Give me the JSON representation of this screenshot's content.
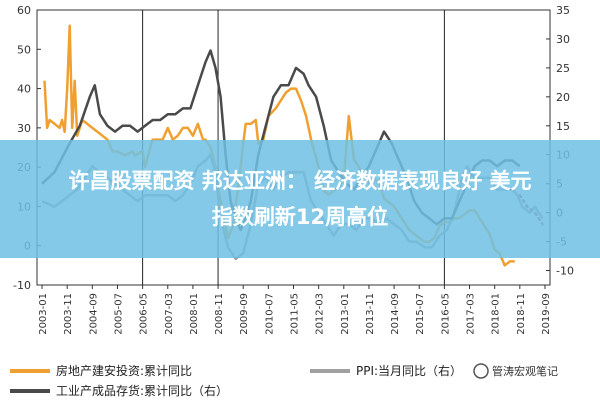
{
  "banner": {
    "line1": "许昌股票配资 邦达亚洲： 经济数据表现良好 美元",
    "line2": "指数刷新12周高位",
    "bg_color": "#6ec1e4"
  },
  "watermark": {
    "text": "管涛宏观笔记"
  },
  "chart_data": {
    "type": "line",
    "x_tick_labels": [
      "2003-01",
      "2003-11",
      "2004-09",
      "2005-07",
      "2006-05",
      "2007-03",
      "2008-01",
      "2008-11",
      "2009-09",
      "2010-07",
      "2011-05",
      "2012-03",
      "2013-01",
      "2013-11",
      "2014-09",
      "2015-07",
      "2016-05",
      "2017-03",
      "2018-01",
      "2018-11",
      "2019-09"
    ],
    "vertical_markers": [
      "2006-05",
      "2008-11",
      "2016-05"
    ],
    "y_left": {
      "ticks": [
        -10,
        0,
        10,
        20,
        30,
        40,
        50,
        60
      ],
      "range": [
        -10,
        60
      ]
    },
    "y_right": {
      "ticks": [
        -10,
        -5,
        0,
        5,
        10,
        15,
        20,
        25,
        30,
        35
      ],
      "range": [
        -12.5,
        35
      ]
    },
    "series": [
      {
        "name": "房地产建安投资:累计同比",
        "axis": "left",
        "color": "#f0a030",
        "points": [
          [
            "2003-02",
            42
          ],
          [
            "2003-03",
            30
          ],
          [
            "2003-04",
            32
          ],
          [
            "2003-06",
            31
          ],
          [
            "2003-08",
            30
          ],
          [
            "2003-09",
            32
          ],
          [
            "2003-10",
            29
          ],
          [
            "2003-11",
            40
          ],
          [
            "2003-12",
            56
          ],
          [
            "2004-01",
            30
          ],
          [
            "2004-02",
            42
          ],
          [
            "2004-03",
            28
          ],
          [
            "2004-05",
            32
          ],
          [
            "2004-07",
            31
          ],
          [
            "2004-09",
            30
          ],
          [
            "2004-11",
            29
          ],
          [
            "2005-01",
            28
          ],
          [
            "2005-03",
            27
          ],
          [
            "2005-05",
            24
          ],
          [
            "2005-07",
            24
          ],
          [
            "2005-10",
            23
          ],
          [
            "2006-01",
            24
          ],
          [
            "2006-02",
            23
          ],
          [
            "2006-05",
            24
          ],
          [
            "2006-06",
            20
          ],
          [
            "2006-08",
            25
          ],
          [
            "2006-09",
            27
          ],
          [
            "2006-11",
            27
          ],
          [
            "2007-01",
            27
          ],
          [
            "2007-03",
            30
          ],
          [
            "2007-05",
            27
          ],
          [
            "2007-07",
            28
          ],
          [
            "2007-09",
            30
          ],
          [
            "2007-11",
            30
          ],
          [
            "2008-01",
            28
          ],
          [
            "2008-03",
            31
          ],
          [
            "2008-05",
            27
          ],
          [
            "2008-06",
            27
          ],
          [
            "2008-08",
            25
          ],
          [
            "2008-10",
            20
          ],
          [
            "2008-11",
            15
          ],
          [
            "2009-01",
            8
          ],
          [
            "2009-03",
            2
          ],
          [
            "2009-05",
            5
          ],
          [
            "2009-07",
            15
          ],
          [
            "2009-08",
            20
          ],
          [
            "2009-09",
            26
          ],
          [
            "2009-10",
            31
          ],
          [
            "2009-12",
            31
          ],
          [
            "2010-02",
            32
          ],
          [
            "2010-03",
            26
          ],
          [
            "2010-05",
            27
          ],
          [
            "2010-07",
            33
          ],
          [
            "2010-10",
            35
          ],
          [
            "2011-01",
            38
          ],
          [
            "2011-02",
            39
          ],
          [
            "2011-04",
            40
          ],
          [
            "2011-06",
            40
          ],
          [
            "2011-08",
            37
          ],
          [
            "2011-10",
            33
          ],
          [
            "2011-12",
            27
          ],
          [
            "2012-03",
            20
          ],
          [
            "2012-05",
            14
          ],
          [
            "2012-07",
            13
          ],
          [
            "2012-09",
            14
          ],
          [
            "2012-11",
            15
          ],
          [
            "2013-01",
            17
          ],
          [
            "2013-03",
            33
          ],
          [
            "2013-05",
            22
          ],
          [
            "2013-07",
            20
          ],
          [
            "2013-09",
            18
          ],
          [
            "2013-11",
            16
          ],
          [
            "2014-01",
            17
          ],
          [
            "2014-03",
            16
          ],
          [
            "2014-05",
            12
          ],
          [
            "2014-07",
            11
          ],
          [
            "2014-09",
            10
          ],
          [
            "2014-11",
            8
          ],
          [
            "2015-01",
            6
          ],
          [
            "2015-03",
            4
          ],
          [
            "2015-05",
            3
          ],
          [
            "2015-07",
            2
          ],
          [
            "2015-09",
            1
          ],
          [
            "2015-11",
            1
          ],
          [
            "2016-01",
            2
          ],
          [
            "2016-03",
            5
          ],
          [
            "2016-05",
            6
          ],
          [
            "2016-07",
            6
          ],
          [
            "2016-09",
            7
          ],
          [
            "2016-11",
            7
          ],
          [
            "2017-01",
            8
          ],
          [
            "2017-03",
            9
          ],
          [
            "2017-05",
            9
          ],
          [
            "2017-07",
            7
          ],
          [
            "2017-09",
            5
          ],
          [
            "2017-11",
            3
          ],
          [
            "2018-01",
            -1
          ],
          [
            "2018-03",
            -2
          ],
          [
            "2018-05",
            -5
          ],
          [
            "2018-07",
            -4
          ],
          [
            "2018-09",
            -4
          ]
        ]
      },
      {
        "name": "PPI:当月同比（右）",
        "axis": "right",
        "color": "#a0a0a0",
        "points": [
          [
            "2003-01",
            2
          ],
          [
            "2003-06",
            1
          ],
          [
            "2003-12",
            3
          ],
          [
            "2004-03",
            4
          ],
          [
            "2004-06",
            6
          ],
          [
            "2004-09",
            8
          ],
          [
            "2004-12",
            7
          ],
          [
            "2005-03",
            6
          ],
          [
            "2005-06",
            5
          ],
          [
            "2005-09",
            4
          ],
          [
            "2005-12",
            3
          ],
          [
            "2006-03",
            2
          ],
          [
            "2006-06",
            3
          ],
          [
            "2006-09",
            3
          ],
          [
            "2006-12",
            3
          ],
          [
            "2007-03",
            3
          ],
          [
            "2007-06",
            2
          ],
          [
            "2007-09",
            3
          ],
          [
            "2007-12",
            5
          ],
          [
            "2008-03",
            8
          ],
          [
            "2008-06",
            9
          ],
          [
            "2008-08",
            10
          ],
          [
            "2008-10",
            7
          ],
          [
            "2008-12",
            -1
          ],
          [
            "2009-03",
            -6
          ],
          [
            "2009-06",
            -8
          ],
          [
            "2009-09",
            -7
          ],
          [
            "2009-12",
            -2
          ],
          [
            "2010-03",
            5
          ],
          [
            "2010-06",
            6
          ],
          [
            "2010-09",
            4
          ],
          [
            "2010-12",
            6
          ],
          [
            "2011-03",
            7
          ],
          [
            "2011-06",
            7
          ],
          [
            "2011-09",
            7
          ],
          [
            "2011-12",
            2
          ],
          [
            "2012-03",
            0
          ],
          [
            "2012-06",
            -2
          ],
          [
            "2012-09",
            -4
          ],
          [
            "2012-12",
            -2
          ],
          [
            "2013-03",
            -2
          ],
          [
            "2013-06",
            -3
          ],
          [
            "2013-09",
            -1
          ],
          [
            "2013-12",
            -1
          ],
          [
            "2014-03",
            -2
          ],
          [
            "2014-06",
            -1
          ],
          [
            "2014-09",
            -2
          ],
          [
            "2014-12",
            -3
          ],
          [
            "2015-03",
            -5
          ],
          [
            "2015-06",
            -5
          ],
          [
            "2015-09",
            -6
          ],
          [
            "2015-12",
            -6
          ],
          [
            "2016-03",
            -4
          ],
          [
            "2016-06",
            -3
          ],
          [
            "2016-09",
            0
          ],
          [
            "2016-12",
            6
          ],
          [
            "2017-02",
            8
          ],
          [
            "2017-05",
            6
          ],
          [
            "2017-08",
            6
          ],
          [
            "2017-11",
            6
          ],
          [
            "2018-02",
            4
          ],
          [
            "2018-05",
            4
          ],
          [
            "2018-08",
            4
          ],
          [
            "2018-10",
            3
          ],
          [
            "2018-12",
            1
          ],
          [
            "2019-03",
            0
          ],
          [
            "2019-05",
            1
          ],
          [
            "2019-08",
            -1
          ]
        ]
      },
      {
        "name": "工业产成品存货:累计同比（右）",
        "axis": "right",
        "color": "#4a4a4a",
        "points": [
          [
            "2003-01",
            5
          ],
          [
            "2003-06",
            7
          ],
          [
            "2003-12",
            12
          ],
          [
            "2004-04",
            15
          ],
          [
            "2004-08",
            20
          ],
          [
            "2004-10",
            22
          ],
          [
            "2004-12",
            17
          ],
          [
            "2005-03",
            15
          ],
          [
            "2005-06",
            14
          ],
          [
            "2005-09",
            15
          ],
          [
            "2005-12",
            15
          ],
          [
            "2006-03",
            14
          ],
          [
            "2006-06",
            15
          ],
          [
            "2006-09",
            16
          ],
          [
            "2006-12",
            16
          ],
          [
            "2007-03",
            17
          ],
          [
            "2007-06",
            17
          ],
          [
            "2007-09",
            18
          ],
          [
            "2007-12",
            18
          ],
          [
            "2008-03",
            22
          ],
          [
            "2008-06",
            26
          ],
          [
            "2008-08",
            28
          ],
          [
            "2008-10",
            25
          ],
          [
            "2008-12",
            20
          ],
          [
            "2009-02",
            10
          ],
          [
            "2009-04",
            2
          ],
          [
            "2009-06",
            -1
          ],
          [
            "2009-08",
            -3
          ],
          [
            "2009-10",
            -1
          ],
          [
            "2009-12",
            2
          ],
          [
            "2010-03",
            10
          ],
          [
            "2010-06",
            15
          ],
          [
            "2010-09",
            20
          ],
          [
            "2010-12",
            22
          ],
          [
            "2011-03",
            22
          ],
          [
            "2011-06",
            25
          ],
          [
            "2011-09",
            24
          ],
          [
            "2011-11",
            22
          ],
          [
            "2012-02",
            20
          ],
          [
            "2012-05",
            15
          ],
          [
            "2012-08",
            9
          ],
          [
            "2012-11",
            7
          ],
          [
            "2013-02",
            5
          ],
          [
            "2013-05",
            4
          ],
          [
            "2013-08",
            6
          ],
          [
            "2013-11",
            8
          ],
          [
            "2014-02",
            11
          ],
          [
            "2014-05",
            14
          ],
          [
            "2014-08",
            12
          ],
          [
            "2014-11",
            9
          ],
          [
            "2015-02",
            6
          ],
          [
            "2015-05",
            2
          ],
          [
            "2015-08",
            0
          ],
          [
            "2015-11",
            -1
          ],
          [
            "2016-02",
            -2
          ],
          [
            "2016-05",
            -1
          ],
          [
            "2016-08",
            -1
          ],
          [
            "2016-11",
            2
          ],
          [
            "2017-02",
            5
          ],
          [
            "2017-05",
            8
          ],
          [
            "2017-08",
            9
          ],
          [
            "2017-11",
            9
          ],
          [
            "2018-02",
            8
          ],
          [
            "2018-05",
            9
          ],
          [
            "2018-08",
            9
          ],
          [
            "2018-11",
            8
          ]
        ],
        "projection": {
          "style": "dotted",
          "color": "#b04a6a",
          "points": [
            [
              "2018-11",
              3
            ],
            [
              "2019-02",
              1
            ],
            [
              "2019-05",
              0
            ],
            [
              "2019-08",
              -2
            ]
          ]
        }
      }
    ],
    "legend": [
      {
        "label": "房地产建安投资:累计同比",
        "color": "#f0a030"
      },
      {
        "label": "PPI:当月同比（右）",
        "color": "#a0a0a0"
      },
      {
        "label": "工业产成品存货:累计同比（右）",
        "color": "#4a4a4a"
      }
    ],
    "legend_position": "bottom",
    "grid": false
  }
}
